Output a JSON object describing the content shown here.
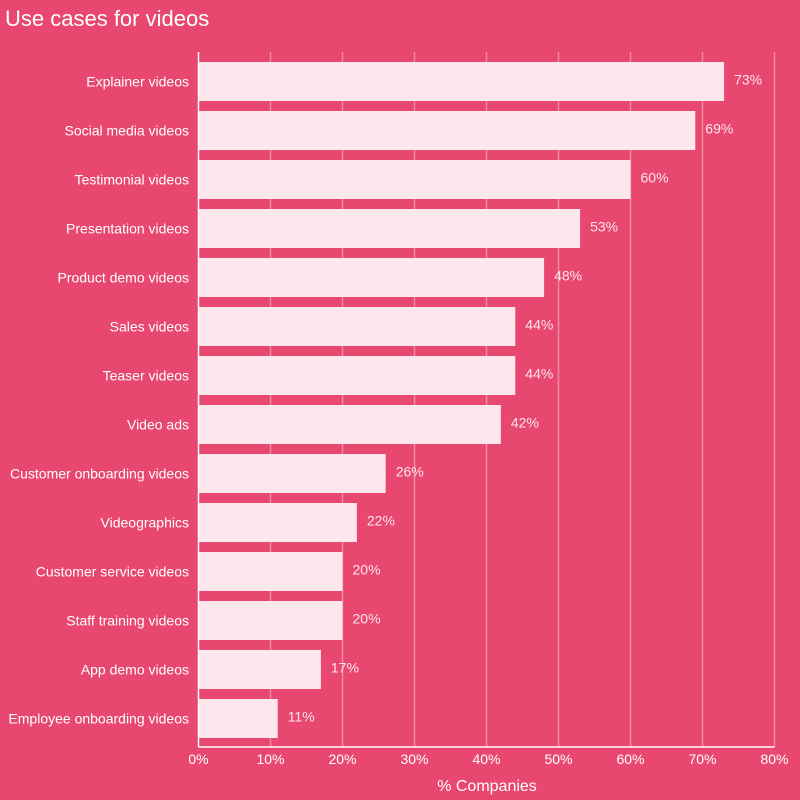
{
  "chart_data": {
    "type": "bar",
    "orientation": "horizontal",
    "title": "Use cases for videos",
    "xlabel": "% Companies",
    "ylabel": "",
    "xlim": [
      0,
      80
    ],
    "xticks": [
      "0%",
      "10%",
      "20%",
      "30%",
      "40%",
      "50%",
      "60%",
      "70%",
      "80%"
    ],
    "grid": true,
    "categories": [
      "Explainer videos",
      "Social media videos",
      "Testimonial videos",
      "Presentation videos",
      "Product demo videos",
      "Sales videos",
      "Teaser videos",
      "Video ads",
      "Customer onboarding videos",
      "Videographics",
      "Customer service videos",
      "Staff training videos",
      "App demo videos",
      "Employee onboarding videos"
    ],
    "values": [
      73,
      69,
      60,
      53,
      48,
      44,
      44,
      42,
      26,
      22,
      20,
      20,
      17,
      11
    ],
    "value_labels": [
      "73%",
      "69%",
      "60%",
      "53%",
      "48%",
      "44%",
      "44%",
      "42%",
      "26%",
      "22%",
      "20%",
      "20%",
      "17%",
      "11%"
    ],
    "colors": {
      "background": "#E8476F",
      "bar": "#FDE6EC",
      "grid": "#F08AA4",
      "text": "#FFFFFF"
    }
  }
}
